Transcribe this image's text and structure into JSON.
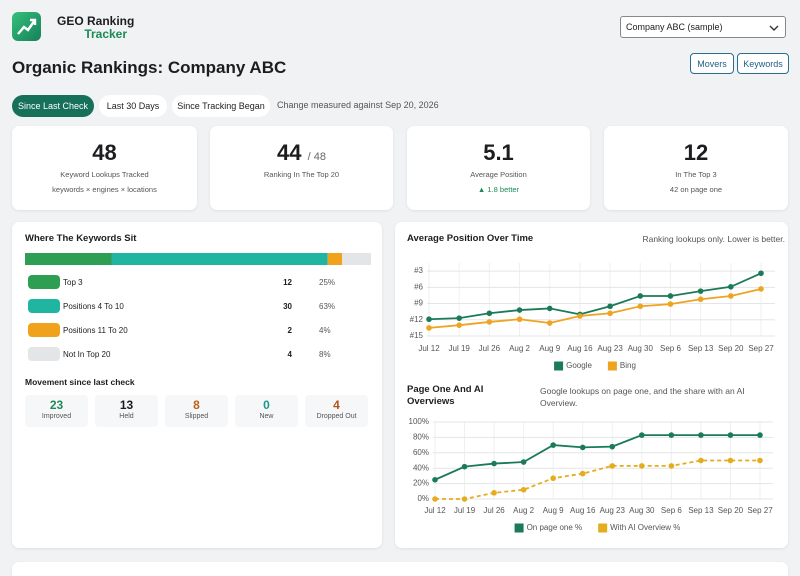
{
  "header": {
    "brand_line1": "GEO Ranking",
    "brand_line2": "Tracker",
    "account_select": "Company ABC (sample)",
    "title": "Organic Rankings: Company ABC",
    "buttons": [
      "Movers",
      "Keywords"
    ]
  },
  "tabs": {
    "items": [
      "Since Last Check",
      "Last 30 Days",
      "Since Tracking Began"
    ],
    "note": "Change measured against Sep 20, 2026"
  },
  "stats": [
    {
      "value": "48",
      "label": "Keyword Lookups Tracked",
      "detail": "keywords × engines × locations"
    },
    {
      "value": "44",
      "suffix": "/ 48",
      "label": "Ranking In The Top 20"
    },
    {
      "value": "5.1",
      "label": "Average Position",
      "detail": "▲ 1.8 better"
    },
    {
      "value": "12",
      "label": "In The Top 3",
      "detail": "42 on page one"
    }
  ],
  "distribution": {
    "title": "Where The Keywords Sit",
    "rows": [
      {
        "label": "Top 3",
        "count": 12,
        "share": "25%",
        "color": "#2e9e52"
      },
      {
        "label": "Positions 4 To 10",
        "count": 30,
        "share": "63%",
        "color": "#1fb5a1"
      },
      {
        "label": "Positions 11 To 20",
        "count": 2,
        "share": "4%",
        "color": "#f0a21c"
      },
      {
        "label": "Not In Top 20",
        "count": 4,
        "share": "8%",
        "color": "#e4e5e7"
      }
    ]
  },
  "movement": {
    "title": "Movement since last check",
    "items": [
      {
        "value": "23",
        "label": "Improved",
        "color": "#1f8a55"
      },
      {
        "value": "13",
        "label": "Held",
        "color": "#1d1d1f"
      },
      {
        "value": "8",
        "label": "Slipped",
        "color": "#b8621b"
      },
      {
        "value": "0",
        "label": "New",
        "color": "#1a9a8a"
      },
      {
        "value": "4",
        "label": "Dropped Out",
        "color": "#b0541e"
      }
    ]
  },
  "chart_data": [
    {
      "type": "line",
      "title": "Average Position Over Time",
      "subtitle": "Ranking lookups only. Lower is better.",
      "categories": [
        "Jul 12",
        "Jul 19",
        "Jul 26",
        "Aug 2",
        "Aug 9",
        "Aug 16",
        "Aug 23",
        "Aug 30",
        "Sep 6",
        "Sep 13",
        "Sep 20",
        "Sep 27"
      ],
      "series": [
        {
          "name": "Google",
          "color": "#1b7a58",
          "values": [
            11.9,
            11.7,
            10.8,
            10.2,
            9.9,
            11,
            9.5,
            7.6,
            7.6,
            6.7,
            5.9,
            3.4
          ]
        },
        {
          "name": "Bing",
          "color": "#eea321",
          "values": [
            13.5,
            13,
            12.4,
            11.9,
            12.6,
            11.3,
            10.8,
            9.5,
            9.1,
            8.2,
            7.6,
            6.3
          ]
        }
      ],
      "ylim": [
        1.5,
        15
      ],
      "y_inverted": true,
      "yticks": [
        {
          "value": 3,
          "label": "#3"
        },
        {
          "value": 6,
          "label": "#6"
        },
        {
          "value": 9,
          "label": "#9"
        },
        {
          "value": 12,
          "label": "#12"
        },
        {
          "value": 15,
          "label": "#15"
        }
      ],
      "grid": true,
      "legend": "bottom"
    },
    {
      "type": "line",
      "title": "Page One And AI Overviews",
      "subtitle": "Google lookups on page one, and the share with an AI Overview.",
      "categories": [
        "Jul 12",
        "Jul 19",
        "Jul 26",
        "Aug 2",
        "Aug 9",
        "Aug 16",
        "Aug 23",
        "Aug 30",
        "Sep 6",
        "Sep 13",
        "Sep 20",
        "Sep 27"
      ],
      "series": [
        {
          "name": "On page one %",
          "color": "#1b7a58",
          "line_style": "solid",
          "values": [
            25,
            42,
            46,
            48,
            70,
            67,
            68,
            83,
            83,
            83,
            83,
            83
          ]
        },
        {
          "name": "With AI Overview %",
          "color": "#e3ad1e",
          "line_style": "dashed",
          "values": [
            0,
            0,
            8,
            12,
            27,
            33,
            43,
            43,
            43,
            50,
            50,
            50
          ]
        }
      ],
      "ylim": [
        0,
        100
      ],
      "y_inverted": false,
      "yticks": [
        {
          "value": 0,
          "label": "0%"
        },
        {
          "value": 20,
          "label": "20%"
        },
        {
          "value": 40,
          "label": "40%"
        },
        {
          "value": 60,
          "label": "60%"
        },
        {
          "value": 80,
          "label": "80%"
        },
        {
          "value": 100,
          "label": "100%"
        }
      ],
      "grid": true,
      "legend": "bottom"
    }
  ]
}
